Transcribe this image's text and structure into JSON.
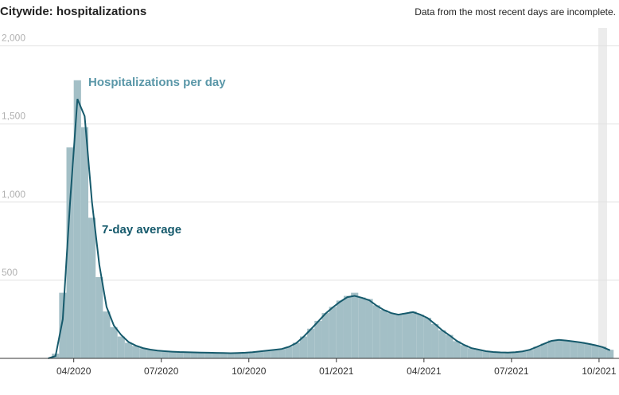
{
  "chart_data": {
    "type": "bar",
    "title": "Citywide: hospitalizations",
    "note": "Data from the most recent days are incomplete.",
    "categories": [
      null,
      null,
      null,
      null,
      "04/2020",
      null,
      null,
      null,
      null,
      null,
      null,
      null,
      null,
      null,
      null,
      null,
      "07/2020",
      null,
      null,
      null,
      null,
      null,
      null,
      null,
      null,
      null,
      null,
      null,
      "10/2020",
      null,
      null,
      null,
      null,
      null,
      null,
      null,
      null,
      null,
      null,
      null,
      "01/2021",
      null,
      null,
      null,
      null,
      null,
      null,
      null,
      null,
      null,
      null,
      null,
      "04/2021",
      null,
      null,
      null,
      null,
      null,
      null,
      null,
      null,
      null,
      null,
      null,
      "07/2021",
      null,
      null,
      null,
      null,
      null,
      null,
      null,
      null,
      null,
      null,
      null,
      "10/2021",
      null
    ],
    "series": [
      {
        "name": "Hospitalizations per day",
        "type": "bar",
        "color": "#a3bfc6",
        "values": [
          0,
          30,
          420,
          1350,
          1780,
          1480,
          900,
          520,
          300,
          200,
          140,
          100,
          80,
          65,
          55,
          50,
          45,
          42,
          40,
          40,
          38,
          37,
          35,
          35,
          33,
          32,
          33,
          36,
          40,
          45,
          50,
          55,
          60,
          75,
          100,
          140,
          190,
          240,
          290,
          330,
          370,
          400,
          420,
          390,
          380,
          340,
          310,
          290,
          280,
          290,
          300,
          280,
          260,
          220,
          180,
          150,
          110,
          85,
          65,
          55,
          45,
          40,
          38,
          36,
          40,
          45,
          55,
          75,
          95,
          115,
          120,
          115,
          110,
          105,
          95,
          85,
          75,
          55
        ]
      },
      {
        "name": "7-day average",
        "type": "line",
        "color": "#165a6c",
        "values": [
          0,
          15,
          250,
          1000,
          1660,
          1550,
          1000,
          600,
          330,
          210,
          150,
          105,
          82,
          66,
          56,
          50,
          46,
          43,
          41,
          40,
          38,
          37,
          36,
          35,
          34,
          33,
          34,
          36,
          40,
          45,
          50,
          55,
          60,
          74,
          98,
          138,
          186,
          236,
          286,
          326,
          362,
          392,
          400,
          388,
          372,
          338,
          310,
          290,
          280,
          288,
          296,
          280,
          258,
          220,
          180,
          148,
          112,
          86,
          66,
          56,
          46,
          41,
          38,
          37,
          40,
          45,
          55,
          74,
          94,
          112,
          118,
          114,
          108,
          102,
          94,
          84,
          72,
          52
        ]
      }
    ],
    "ylim": [
      0,
      2100
    ],
    "yticks": [
      {
        "value": 500,
        "label": "500"
      },
      {
        "value": 1000,
        "label": "1,000"
      },
      {
        "value": 1500,
        "label": "1,500"
      },
      {
        "value": 2000,
        "label": "2,000"
      }
    ],
    "grid": true
  }
}
